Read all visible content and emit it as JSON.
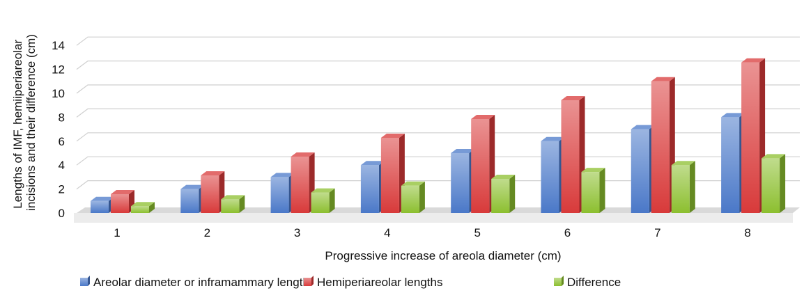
{
  "chart_data": {
    "type": "bar",
    "categories": [
      "1",
      "2",
      "3",
      "4",
      "5",
      "6",
      "7",
      "8"
    ],
    "series": [
      {
        "name": "Areolar diameter or inframammary length",
        "values": [
          1,
          2,
          3,
          4,
          5,
          6,
          7,
          8
        ],
        "color": "#4a78c8"
      },
      {
        "name": "Hemiperiareolar lengths",
        "values": [
          1.57,
          3.14,
          4.71,
          6.28,
          7.85,
          9.42,
          11.0,
          12.57
        ],
        "color": "#d83a3a"
      },
      {
        "name": "Difference",
        "values": [
          0.57,
          1.14,
          1.71,
          2.28,
          2.85,
          3.42,
          4.0,
          4.57
        ],
        "color": "#8cbf2f"
      }
    ],
    "xlabel": "Progressive increase of areola diameter (cm)",
    "ylabel": [
      "Lengths of IMF, hemiiperiareolar",
      "incisions and their difference (cm)"
    ],
    "y_ticks": [
      "0",
      "2",
      "4",
      "6",
      "8",
      "10",
      "12",
      "14"
    ],
    "ylim": [
      0,
      14
    ],
    "grid": true,
    "legend_position": "bottom",
    "style": "3d-column"
  }
}
